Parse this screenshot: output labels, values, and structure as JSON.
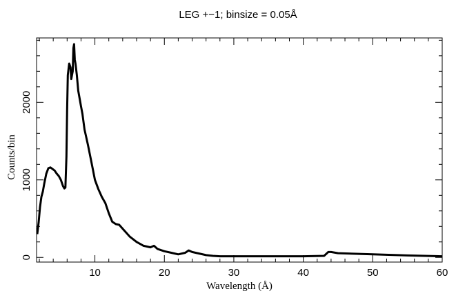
{
  "chart_data": {
    "type": "line",
    "title": "LEG +−1; binsize = 0.05Å",
    "xlabel": "Wavelength (Å)",
    "ylabel": "Counts/bin",
    "xlim": [
      1.6,
      60
    ],
    "ylim": [
      -60,
      2830
    ],
    "x_ticks": [
      10,
      20,
      30,
      40,
      50,
      60
    ],
    "x_tick_labels": [
      "10",
      "20",
      "30",
      "40",
      "50",
      "60"
    ],
    "y_ticks": [
      0,
      1000,
      2000
    ],
    "y_tick_labels": [
      "0",
      "1000",
      "2000"
    ],
    "grid": false,
    "legend": "none",
    "series": [
      {
        "color": "#000000",
        "x": [
          1.7,
          1.9,
          2.1,
          2.3,
          2.5,
          2.7,
          3.0,
          3.3,
          3.6,
          3.9,
          4.2,
          4.5,
          4.8,
          5.1,
          5.4,
          5.6,
          5.75,
          5.9,
          6.0,
          6.1,
          6.3,
          6.5,
          6.6,
          6.8,
          6.9,
          7.0,
          7.1,
          7.2,
          7.4,
          7.6,
          7.8,
          8.0,
          8.2,
          8.5,
          9.0,
          9.5,
          10.0,
          10.5,
          11.0,
          11.5,
          12.0,
          12.5,
          13.0,
          13.5,
          14.0,
          15.0,
          16.0,
          17.0,
          18.0,
          18.5,
          19.0,
          20.0,
          21.0,
          22.0,
          23.0,
          23.5,
          24.0,
          25.0,
          26.0,
          27.0,
          28.0,
          30.0,
          35.0,
          40.0,
          43.0,
          43.6,
          44.0,
          45.0,
          50.0,
          55.0,
          60.0
        ],
        "y": [
          300,
          450,
          650,
          780,
          850,
          950,
          1080,
          1150,
          1160,
          1140,
          1120,
          1080,
          1050,
          1000,
          920,
          890,
          900,
          1300,
          1900,
          2350,
          2500,
          2450,
          2300,
          2400,
          2700,
          2750,
          2550,
          2500,
          2350,
          2150,
          2050,
          1950,
          1850,
          1650,
          1450,
          1230,
          1000,
          880,
          780,
          700,
          570,
          460,
          430,
          420,
          370,
          270,
          200,
          150,
          130,
          150,
          110,
          80,
          60,
          40,
          60,
          90,
          70,
          50,
          30,
          20,
          15,
          15,
          15,
          15,
          20,
          70,
          70,
          55,
          40,
          25,
          15
        ]
      }
    ]
  }
}
